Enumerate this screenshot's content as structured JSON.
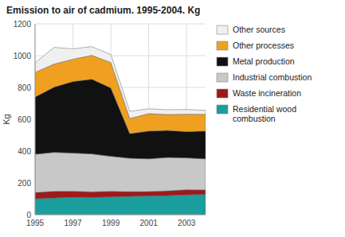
{
  "chart_data": {
    "type": "area",
    "stacked": true,
    "title": "Emission to air of cadmium. 1995-2004. Kg",
    "y_label": "Kg",
    "x": [
      1995,
      1996,
      1997,
      1998,
      1999,
      2000,
      2001,
      2002,
      2003,
      2004
    ],
    "series": [
      {
        "name": "Residential wood\ncombustion",
        "color": "#1a9e9e",
        "values": [
          100,
          105,
          110,
          108,
          112,
          115,
          118,
          120,
          125,
          128
        ]
      },
      {
        "name": "Waste incineration",
        "color": "#9e1a1a",
        "values": [
          40,
          42,
          38,
          36,
          35,
          30,
          28,
          30,
          32,
          28
        ]
      },
      {
        "name": "Industrial combustion",
        "color": "#c8c8c8",
        "values": [
          240,
          245,
          240,
          238,
          220,
          210,
          205,
          210,
          200,
          195
        ]
      },
      {
        "name": "Metal production",
        "color": "#111111",
        "values": [
          360,
          410,
          450,
          470,
          430,
          155,
          175,
          170,
          165,
          175
        ]
      },
      {
        "name": "Other processes",
        "color": "#f0a020",
        "values": [
          155,
          145,
          140,
          150,
          160,
          95,
          110,
          100,
          110,
          105
        ]
      },
      {
        "name": "Other sources",
        "color": "#f0f0f0",
        "values": [
          60,
          105,
          65,
          55,
          50,
          45,
          30,
          30,
          30,
          25
        ]
      }
    ],
    "xlim": [
      1995,
      2004
    ],
    "xticks": [
      1995,
      1997,
      1999,
      2001,
      2003
    ],
    "ylim": [
      0,
      1200
    ],
    "yticks": [
      0,
      200,
      400,
      600,
      800,
      1000,
      1200
    ],
    "grid": true,
    "legend": "right"
  }
}
